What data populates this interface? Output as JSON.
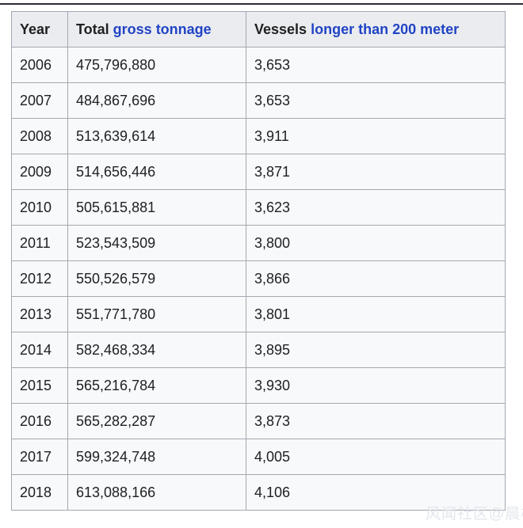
{
  "page": {
    "watermark": "风闻社区@晨枫"
  },
  "table": {
    "header": {
      "year": {
        "label": "Year"
      },
      "tonnage": {
        "prefix": "Total ",
        "link": "gross tonnage"
      },
      "vessels": {
        "prefix": "Vessels ",
        "link": "longer than 200 meter"
      }
    },
    "rows": [
      {
        "year": "2006",
        "tonnage": "475,796,880",
        "vessels": "3,653"
      },
      {
        "year": "2007",
        "tonnage": "484,867,696",
        "vessels": "3,653"
      },
      {
        "year": "2008",
        "tonnage": "513,639,614",
        "vessels": "3,911"
      },
      {
        "year": "2009",
        "tonnage": "514,656,446",
        "vessels": "3,871"
      },
      {
        "year": "2010",
        "tonnage": "505,615,881",
        "vessels": "3,623"
      },
      {
        "year": "2011",
        "tonnage": "523,543,509",
        "vessels": "3,800"
      },
      {
        "year": "2012",
        "tonnage": "550,526,579",
        "vessels": "3,866"
      },
      {
        "year": "2013",
        "tonnage": "551,771,780",
        "vessels": "3,801"
      },
      {
        "year": "2014",
        "tonnage": "582,468,334",
        "vessels": "3,895"
      },
      {
        "year": "2015",
        "tonnage": "565,216,784",
        "vessels": "3,930"
      },
      {
        "year": "2016",
        "tonnage": "565,282,287",
        "vessels": "3,873"
      },
      {
        "year": "2017",
        "tonnage": "599,324,748",
        "vessels": "4,005"
      },
      {
        "year": "2018",
        "tonnage": "613,088,166",
        "vessels": "4,106"
      }
    ]
  },
  "colors": {
    "header_bg": "#eaecf0",
    "row_bg": "#f8f9fa",
    "border": "#a2a9b1",
    "text": "#202122",
    "link": "#2144c4",
    "top_rule": "#2b2e33",
    "watermark": "#e2e6ec"
  },
  "chart_data": {
    "type": "table",
    "title": "",
    "columns": [
      "Year",
      "Total gross tonnage",
      "Vessels longer than 200 meter"
    ],
    "rows": [
      [
        2006,
        475796880,
        3653
      ],
      [
        2007,
        484867696,
        3653
      ],
      [
        2008,
        513639614,
        3911
      ],
      [
        2009,
        514656446,
        3871
      ],
      [
        2010,
        505615881,
        3623
      ],
      [
        2011,
        523543509,
        3800
      ],
      [
        2012,
        550526579,
        3866
      ],
      [
        2013,
        551771780,
        3801
      ],
      [
        2014,
        582468334,
        3895
      ],
      [
        2015,
        565216784,
        3930
      ],
      [
        2016,
        565282287,
        3873
      ],
      [
        2017,
        599324748,
        4005
      ],
      [
        2018,
        613088166,
        4106
      ]
    ]
  }
}
